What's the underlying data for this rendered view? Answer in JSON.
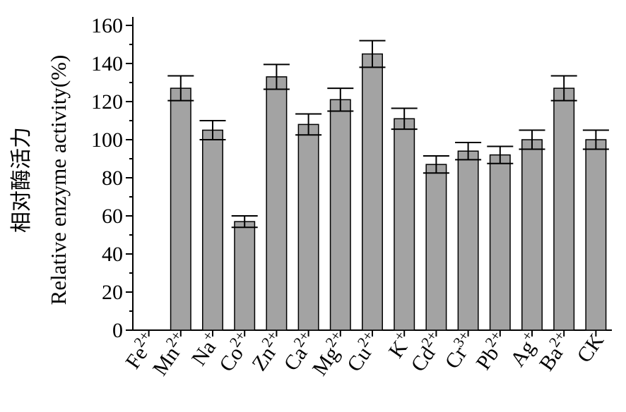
{
  "chart_data": {
    "type": "bar",
    "ylabel_cn": "相对酶活力",
    "ylabel": "Relative enzyme activity(%)",
    "xlabel": "",
    "ylim": [
      0,
      160
    ],
    "yticks": [
      0,
      20,
      40,
      60,
      80,
      100,
      120,
      140,
      160
    ],
    "categories": [
      {
        "base": "Fe",
        "sup": "2+"
      },
      {
        "base": "Mn",
        "sup": "2+"
      },
      {
        "base": "Na",
        "sup": "+"
      },
      {
        "base": "Co",
        "sup": "2+"
      },
      {
        "base": "Zn",
        "sup": "2+"
      },
      {
        "base": "Ca",
        "sup": "2+"
      },
      {
        "base": "Mg",
        "sup": "2+"
      },
      {
        "base": "Cu",
        "sup": "2+"
      },
      {
        "base": "K",
        "sup": "+"
      },
      {
        "base": "Cd",
        "sup": "2+"
      },
      {
        "base": "Cr",
        "sup": "3+"
      },
      {
        "base": "Pb",
        "sup": "2+"
      },
      {
        "base": "Ag",
        "sup": "+"
      },
      {
        "base": "Ba",
        "sup": "2+"
      },
      {
        "base": "CK",
        "sup": ""
      }
    ],
    "values": [
      0,
      127,
      105,
      57,
      133,
      108,
      121,
      145,
      111,
      87,
      94,
      92,
      100,
      127,
      100
    ],
    "errors": [
      0,
      6.5,
      5,
      3,
      6.5,
      5.5,
      6,
      7,
      5.5,
      4.5,
      4.5,
      4.5,
      5,
      6.5,
      5
    ],
    "bar_color": "#a3a3a3",
    "bar_edge_color": "#000000",
    "grid": false,
    "legend": "none"
  }
}
